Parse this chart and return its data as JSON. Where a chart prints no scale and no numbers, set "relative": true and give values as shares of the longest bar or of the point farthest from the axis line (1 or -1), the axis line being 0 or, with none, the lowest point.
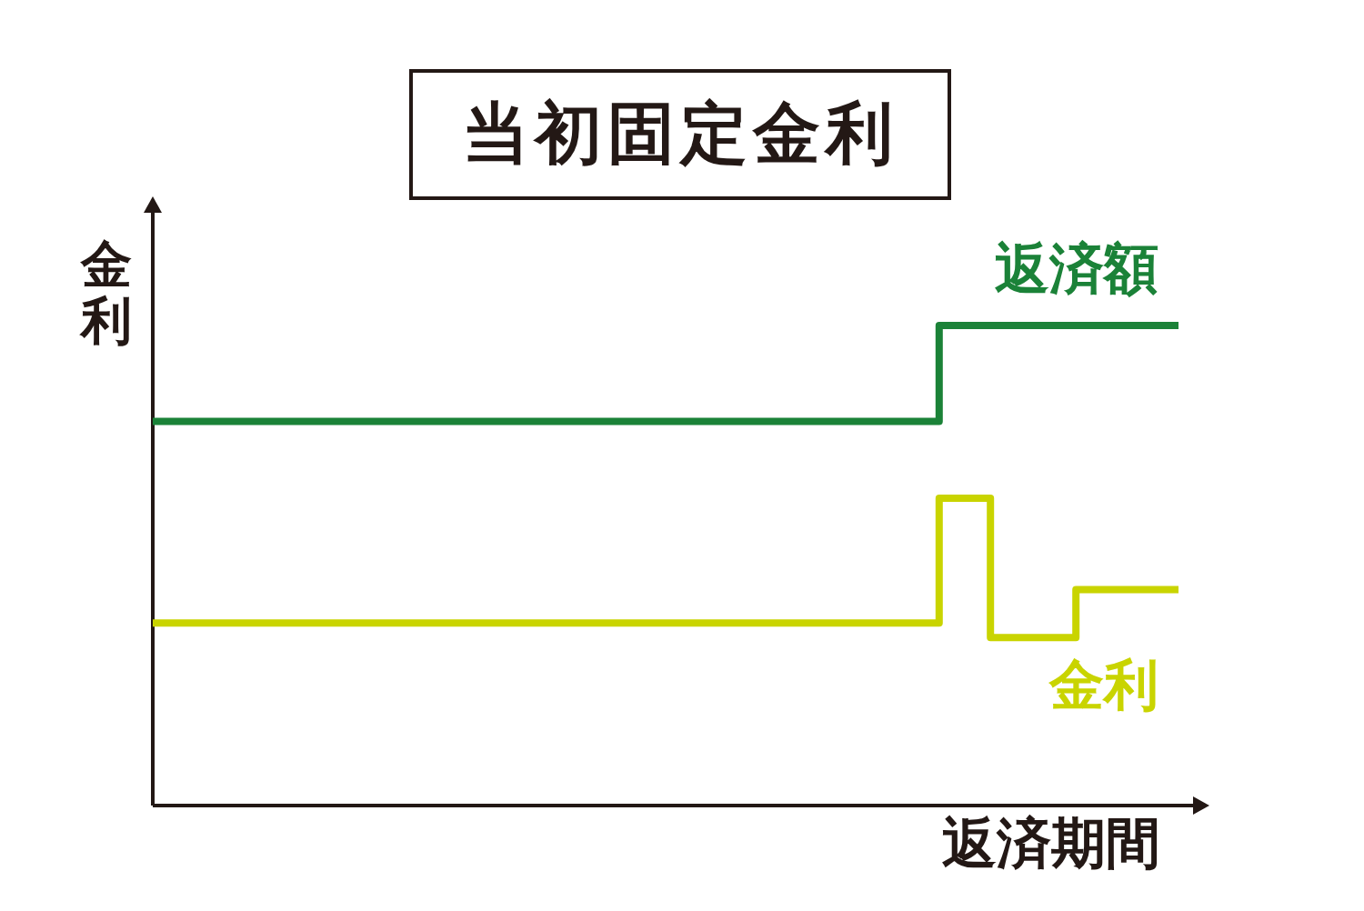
{
  "chart_data": {
    "type": "step",
    "title": "当初固定金利",
    "xlabel": "返済期間",
    "ylabel": "金利",
    "relative": true,
    "marker": "none",
    "categories": [
      null,
      null,
      null,
      null,
      null,
      null,
      null,
      null,
      null,
      null,
      null,
      null,
      null,
      null,
      null,
      null,
      null,
      null,
      null,
      null,
      null,
      null,
      null,
      null,
      null,
      null,
      null,
      null,
      null,
      null,
      null,
      null,
      null,
      null,
      null,
      null,
      null,
      null,
      null,
      null,
      null,
      null,
      null,
      null,
      null,
      null,
      null,
      null,
      null,
      null,
      null,
      null,
      null,
      null,
      null,
      null,
      null,
      null,
      null,
      null,
      null
    ],
    "series": [
      {
        "name": "返済額",
        "color": "#1b8238",
        "values": [
          0.8,
          0.8,
          0.8,
          0.8,
          0.8,
          0.8,
          0.8,
          0.8,
          0.8,
          0.8,
          0.8,
          0.8,
          0.8,
          0.8,
          0.8,
          0.8,
          0.8,
          0.8,
          0.8,
          0.8,
          0.8,
          0.8,
          0.8,
          0.8,
          0.8,
          0.8,
          0.8,
          0.8,
          0.8,
          0.8,
          0.8,
          0.8,
          0.8,
          0.8,
          0.8,
          0.8,
          0.8,
          0.8,
          0.8,
          0.8,
          0.8,
          0.8,
          0.8,
          0.8,
          0.8,
          0.8,
          1,
          1,
          1,
          1,
          1,
          1,
          1,
          1,
          1,
          1,
          1,
          1,
          1,
          1,
          1
        ]
      },
      {
        "name": "金利",
        "color": "#c9d400",
        "values": [
          0.38,
          0.38,
          0.38,
          0.38,
          0.38,
          0.38,
          0.38,
          0.38,
          0.38,
          0.38,
          0.38,
          0.38,
          0.38,
          0.38,
          0.38,
          0.38,
          0.38,
          0.38,
          0.38,
          0.38,
          0.38,
          0.38,
          0.38,
          0.38,
          0.38,
          0.38,
          0.38,
          0.38,
          0.38,
          0.38,
          0.38,
          0.38,
          0.38,
          0.38,
          0.38,
          0.38,
          0.38,
          0.38,
          0.38,
          0.38,
          0.38,
          0.38,
          0.38,
          0.38,
          0.38,
          0.38,
          0.64,
          0.64,
          0.64,
          0.35,
          0.35,
          0.35,
          0.35,
          0.35,
          0.45,
          0.45,
          0.45,
          0.45,
          0.45,
          0.45,
          0.45
        ]
      }
    ]
  }
}
